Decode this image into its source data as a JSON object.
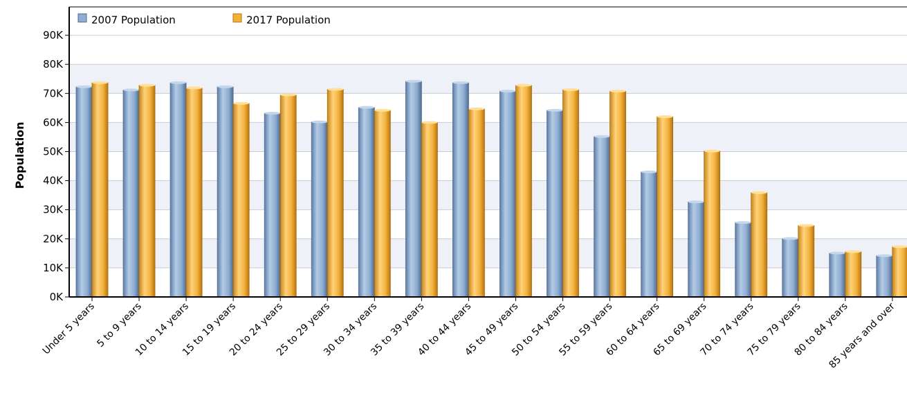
{
  "chart_data": {
    "type": "bar",
    "title": "",
    "xlabel": "",
    "ylabel": "Population",
    "ylim": [
      0,
      90000
    ],
    "yticks": [
      0,
      10000,
      20000,
      30000,
      40000,
      50000,
      60000,
      70000,
      80000,
      90000
    ],
    "ytick_labels": [
      "0K",
      "10K",
      "20K",
      "30K",
      "40K",
      "50K",
      "60K",
      "70K",
      "80K",
      "90K"
    ],
    "grid": true,
    "legend_position": "top-left",
    "categories": [
      "Under 5 years",
      "5 to 9 years",
      "10 to 14 years",
      "15 to 19 years",
      "20 to 24 years",
      "25 to 29 years",
      "30 to 34 years",
      "35 to 39 years",
      "40 to 44 years",
      "45 to 49 years",
      "50 to 54 years",
      "55 to 59 years",
      "60 to 64 years",
      "65 to 69 years",
      "70 to 74 years",
      "75 to 79 years",
      "80 to 84 years",
      "85 years and over"
    ],
    "series": [
      {
        "name": "2007 Population",
        "color": "#8eadd1",
        "values": [
          72300,
          71200,
          73700,
          72300,
          63200,
          60200,
          65200,
          74200,
          73700,
          70800,
          64200,
          55200,
          43000,
          32700,
          25600,
          20100,
          15100,
          14200
        ]
      },
      {
        "name": "2017 Population",
        "color": "#f3b13c",
        "values": [
          73700,
          72800,
          71900,
          66600,
          69500,
          71400,
          64200,
          60000,
          64700,
          72800,
          71300,
          70800,
          62000,
          50200,
          35900,
          24600,
          15600,
          17300
        ]
      }
    ]
  }
}
